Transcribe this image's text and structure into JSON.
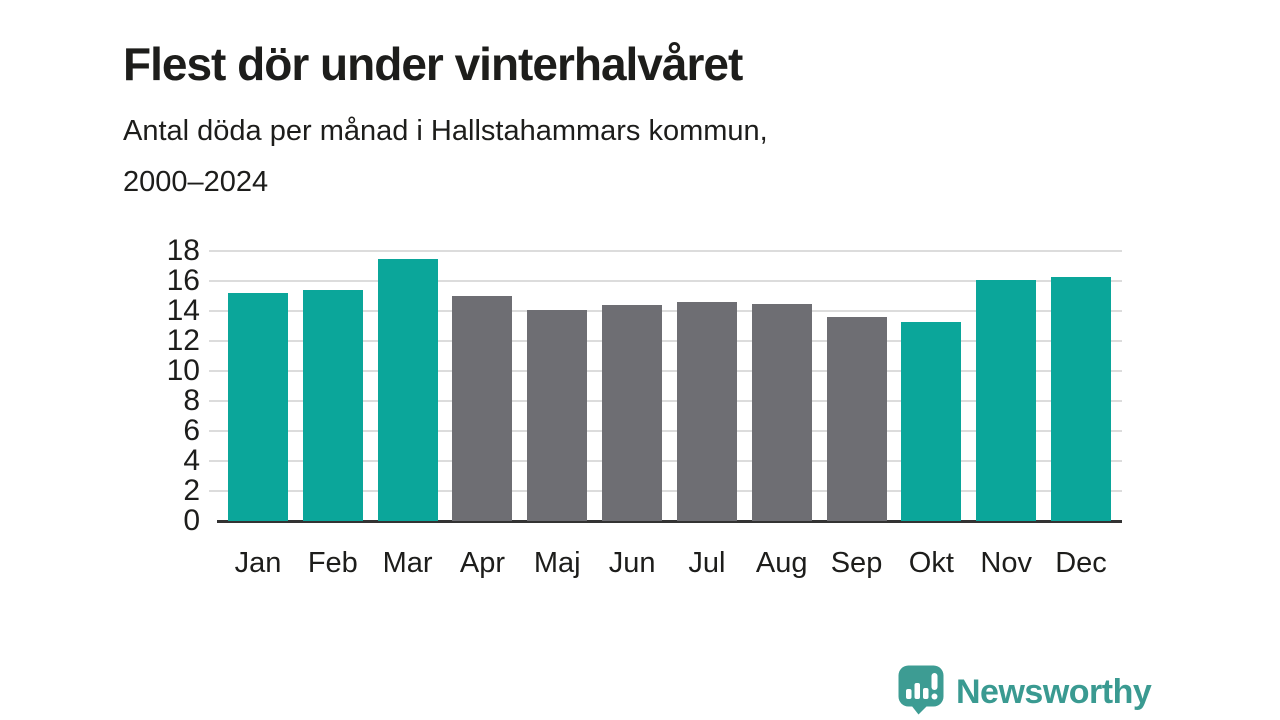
{
  "header": {
    "title": "Flest dör under vinterhalvåret",
    "subtitle_line1": "Antal döda per månad i Hallstahammars kommun,",
    "subtitle_line2": "2000–2024"
  },
  "chart_data": {
    "type": "bar",
    "title": "Flest dör under vinterhalvåret",
    "subtitle": "Antal döda per månad i Hallstahammars kommun, 2000–2024",
    "xlabel": "",
    "ylabel": "",
    "categories": [
      "Jan",
      "Feb",
      "Mar",
      "Apr",
      "Maj",
      "Jun",
      "Jul",
      "Aug",
      "Sep",
      "Okt",
      "Nov",
      "Dec"
    ],
    "values": [
      15.2,
      15.4,
      17.5,
      15.0,
      14.1,
      14.4,
      14.6,
      14.5,
      13.6,
      13.3,
      16.1,
      16.3
    ],
    "highlighted": [
      true,
      true,
      true,
      false,
      false,
      false,
      false,
      false,
      false,
      true,
      true,
      true
    ],
    "bar_palette": {
      "highlight": "#0ba69a",
      "default": "#6e6e73"
    },
    "ylim": [
      0,
      18
    ],
    "yticks": [
      0,
      2,
      4,
      6,
      8,
      10,
      12,
      14,
      16,
      18
    ],
    "grid": true,
    "legend": "none",
    "gridline_color": "#dcdcdc",
    "axis_color": "#333333"
  },
  "footer": {
    "brand": "Newsworthy",
    "brand_color": "#3a9a91",
    "logo_icon_color": "#3d9c93"
  }
}
